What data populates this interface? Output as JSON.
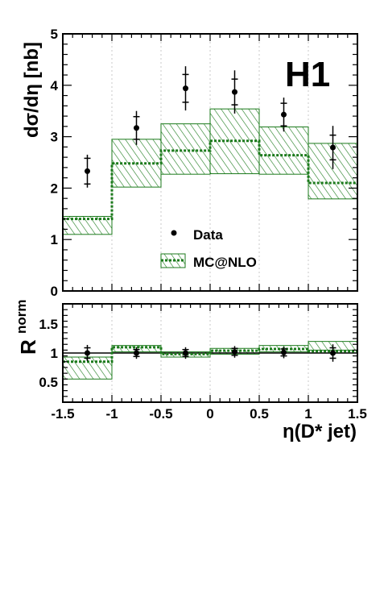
{
  "chart_data": [
    {
      "type": "line",
      "panel": "cross-section",
      "ylabel": "dσ/dη [nb]",
      "ylim": [
        0,
        5
      ],
      "yticks": [
        0,
        1,
        2,
        3,
        4,
        5
      ],
      "xlim": [
        -1.5,
        1.5
      ],
      "label": "H1",
      "bins": [
        [
          -1.5,
          -1.0
        ],
        [
          -1.0,
          -0.5
        ],
        [
          -0.5,
          0.0
        ],
        [
          0.0,
          0.5
        ],
        [
          0.5,
          1.0
        ],
        [
          1.0,
          1.5
        ]
      ],
      "series": [
        {
          "name": "Data",
          "x": [
            -1.25,
            -0.75,
            -0.25,
            0.25,
            0.75,
            1.25
          ],
          "y": [
            2.33,
            3.17,
            3.94,
            3.87,
            3.43,
            2.79
          ],
          "err_stat": [
            0.25,
            0.22,
            0.27,
            0.25,
            0.22,
            0.24
          ],
          "err_tot": [
            0.32,
            0.33,
            0.43,
            0.42,
            0.33,
            0.42
          ]
        },
        {
          "name": "MC@NLO",
          "central": [
            1.4,
            2.48,
            2.73,
            2.92,
            2.64,
            2.1
          ],
          "band_low": [
            1.1,
            2.02,
            2.27,
            2.28,
            2.27,
            1.79
          ],
          "band_high": [
            1.45,
            2.95,
            3.25,
            3.54,
            3.19,
            2.87
          ]
        }
      ],
      "legend": [
        "Data",
        "MC@NLO"
      ],
      "legend_position": "center"
    },
    {
      "type": "line",
      "panel": "ratio",
      "ylabel_main": "R",
      "ylabel_sup": "norm",
      "xlabel": "η(D* jet)",
      "xlim": [
        -1.5,
        1.5
      ],
      "xticks": [
        -1.5,
        -1,
        -0.5,
        0,
        0.5,
        1,
        1.5
      ],
      "ylim": [
        0.15,
        1.85
      ],
      "yticks": [
        0.5,
        1,
        1.5
      ],
      "reference_line": 1,
      "series": [
        {
          "name": "Data",
          "x": [
            -1.25,
            -0.75,
            -0.25,
            0.25,
            0.75,
            1.25
          ],
          "y": [
            1.0,
            1.0,
            1.0,
            1.02,
            1.01,
            1.0
          ],
          "err_stat": [
            0.09,
            0.06,
            0.06,
            0.06,
            0.06,
            0.09
          ],
          "err_tot": [
            0.14,
            0.1,
            0.1,
            0.1,
            0.1,
            0.15
          ]
        },
        {
          "name": "MC@NLO",
          "central": [
            0.85,
            1.1,
            0.98,
            1.04,
            1.07,
            1.03
          ],
          "band_low": [
            0.55,
            1.02,
            0.93,
            0.98,
            1.02,
            1.05
          ],
          "band_high": [
            0.93,
            1.13,
            1.02,
            1.08,
            1.13,
            1.2
          ]
        }
      ]
    }
  ]
}
